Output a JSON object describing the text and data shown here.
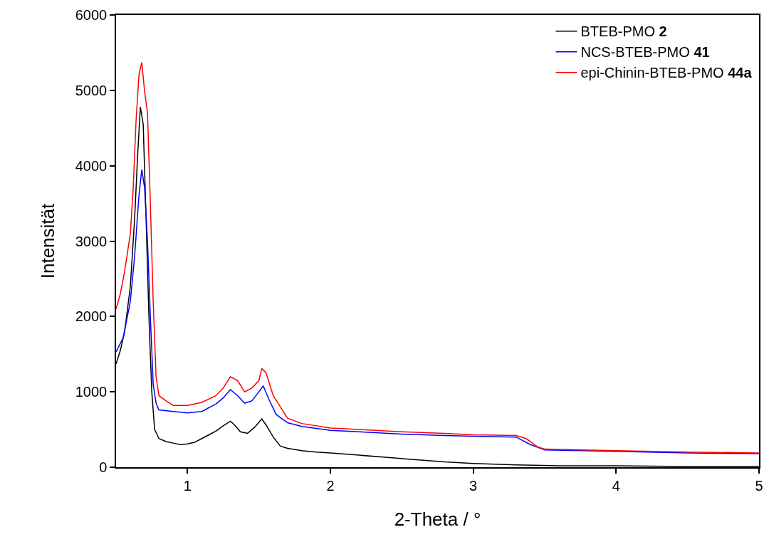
{
  "chart_data": {
    "type": "line",
    "xlabel": "2-Theta / °",
    "ylabel": "Intensität",
    "xlim": [
      0.5,
      5
    ],
    "xticks": [
      1,
      2,
      3,
      4,
      5
    ],
    "ylim": [
      0,
      6000
    ],
    "yticks": [
      0,
      1000,
      2000,
      3000,
      4000,
      5000,
      6000
    ],
    "legend": "top right",
    "marker": "none",
    "line_style": "solid",
    "series": [
      {
        "name": "BTEB-PMO 2",
        "color": "#000000",
        "x": [
          0.5,
          0.53,
          0.56,
          0.6,
          0.63,
          0.65,
          0.67,
          0.69,
          0.71,
          0.73,
          0.75,
          0.77,
          0.8,
          0.85,
          0.9,
          0.95,
          1.0,
          1.05,
          1.1,
          1.15,
          1.2,
          1.25,
          1.3,
          1.33,
          1.37,
          1.42,
          1.47,
          1.52,
          1.55,
          1.6,
          1.65,
          1.7,
          1.8,
          1.9,
          2.0,
          2.2,
          2.4,
          2.6,
          2.8,
          3.0,
          3.3,
          3.6,
          4.0,
          4.5,
          5.0
        ],
        "values": [
          1370,
          1550,
          1800,
          2400,
          3300,
          4100,
          4780,
          4550,
          3300,
          2000,
          1000,
          500,
          380,
          340,
          320,
          300,
          310,
          330,
          380,
          430,
          480,
          550,
          610,
          560,
          470,
          450,
          530,
          640,
          560,
          400,
          280,
          250,
          220,
          200,
          190,
          160,
          130,
          100,
          70,
          50,
          30,
          20,
          20,
          10,
          10
        ]
      },
      {
        "name": "NCS-BTEB-PMO 41",
        "color": "#0000ff",
        "x": [
          0.5,
          0.55,
          0.6,
          0.63,
          0.66,
          0.68,
          0.7,
          0.72,
          0.74,
          0.76,
          0.78,
          0.8,
          0.9,
          1.0,
          1.1,
          1.2,
          1.25,
          1.3,
          1.35,
          1.4,
          1.45,
          1.5,
          1.53,
          1.57,
          1.62,
          1.7,
          1.8,
          2.0,
          2.2,
          2.5,
          2.8,
          3.0,
          3.3,
          3.4,
          3.5,
          4.0,
          4.5,
          5.0
        ],
        "values": [
          1530,
          1720,
          2200,
          2800,
          3600,
          3950,
          3700,
          3000,
          2000,
          1100,
          850,
          760,
          740,
          720,
          740,
          840,
          920,
          1030,
          950,
          850,
          880,
          1000,
          1080,
          900,
          700,
          590,
          540,
          490,
          470,
          440,
          420,
          410,
          400,
          300,
          230,
          210,
          190,
          180
        ]
      },
      {
        "name": "epi-Chinin-BTEB-PMO 44a",
        "color": "#ff0000",
        "x": [
          0.5,
          0.53,
          0.56,
          0.6,
          0.62,
          0.64,
          0.66,
          0.68,
          0.7,
          0.72,
          0.74,
          0.76,
          0.78,
          0.8,
          0.85,
          0.9,
          1.0,
          1.1,
          1.2,
          1.25,
          1.3,
          1.35,
          1.4,
          1.45,
          1.5,
          1.52,
          1.55,
          1.6,
          1.65,
          1.7,
          1.8,
          2.0,
          2.2,
          2.5,
          2.8,
          3.0,
          3.3,
          3.37,
          3.45,
          3.5,
          4.0,
          4.5,
          5.0
        ],
        "values": [
          2100,
          2300,
          2600,
          3100,
          3700,
          4600,
          5200,
          5370,
          4980,
          4700,
          3500,
          2200,
          1200,
          950,
          880,
          820,
          820,
          860,
          950,
          1050,
          1200,
          1150,
          1000,
          1050,
          1150,
          1310,
          1250,
          950,
          800,
          650,
          580,
          520,
          500,
          470,
          450,
          430,
          420,
          380,
          270,
          240,
          220,
          200,
          190
        ]
      }
    ]
  }
}
